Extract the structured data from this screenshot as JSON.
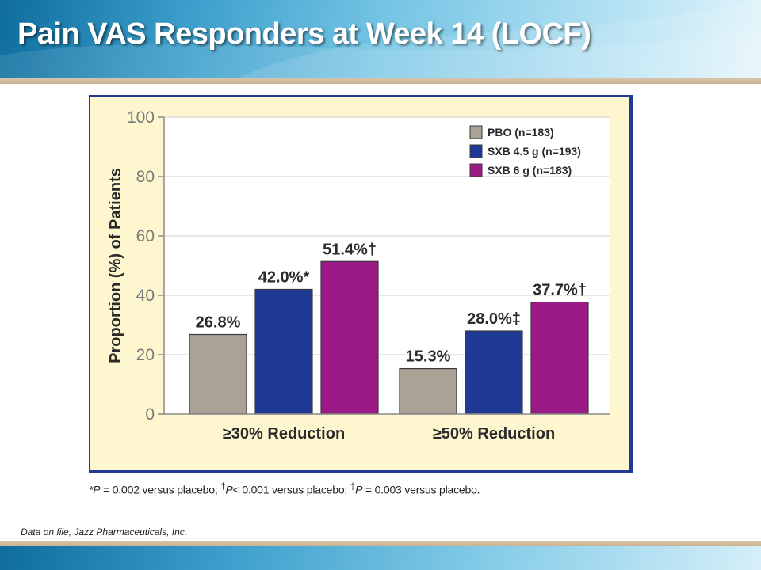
{
  "slide": {
    "title": "Pain VAS Responders at Week 14 (LOCF)",
    "source": "Data on file, Jazz Pharmaceuticals, Inc.",
    "footnote": {
      "p1_value": " = 0.002 versus placebo; ",
      "p2_value": "< 0.001 versus placebo; ",
      "p3_value": " = 0.003 versus placebo.",
      "symbol_1": "*",
      "symbol_2": "†",
      "symbol_3": "‡",
      "p_letter": "P"
    }
  },
  "colors": {
    "pbo": "#aba295",
    "sxb45": "#1e3a94",
    "sxb6": "#9c1a88",
    "panel": "#fdf6cf",
    "plot": "#ffffff",
    "panel_border": "#1e3a94",
    "axis_text": "#7a7a7a",
    "label_text": "#2a2a2a"
  },
  "chart_data": {
    "type": "bar",
    "categories": [
      "≥30% Reduction",
      "≥50% Reduction"
    ],
    "series": [
      {
        "name": "PBO (n=183)",
        "values": [
          26.8,
          15.3
        ],
        "labels": [
          "26.8%",
          "15.3%"
        ]
      },
      {
        "name": "SXB 4.5 g (n=193)",
        "values": [
          42.0,
          28.0
        ],
        "labels": [
          "42.0%*",
          "28.0%‡"
        ]
      },
      {
        "name": "SXB 6 g (n=183)",
        "values": [
          51.4,
          37.7
        ],
        "labels": [
          "51.4%†",
          "37.7%†"
        ]
      }
    ],
    "ylabel": "Proportion (%) of Patients",
    "xlabel": "",
    "ylim": [
      0,
      100
    ],
    "yticks": [
      0,
      20,
      40,
      60,
      80,
      100
    ],
    "ytick_labels": [
      "0",
      "20",
      "40",
      "60",
      "80",
      "100"
    ],
    "grid": true,
    "legend": "top-right"
  }
}
